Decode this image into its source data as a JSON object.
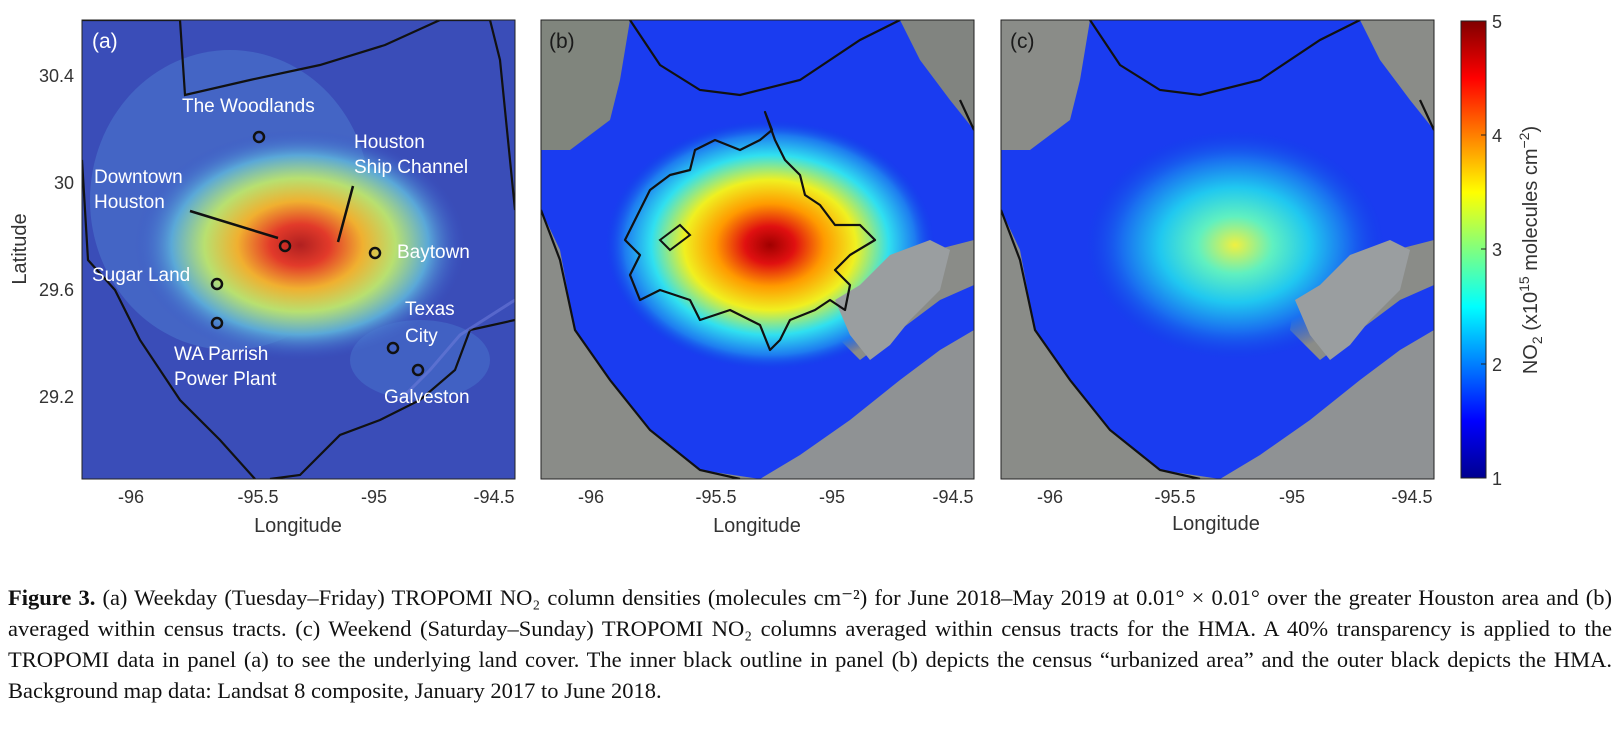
{
  "figure": {
    "panels": [
      {
        "label": "(a)",
        "xlabel": "Longitude",
        "ylabel": "Latitude"
      },
      {
        "label": "(b)",
        "xlabel": "Longitude"
      },
      {
        "label": "(c)",
        "xlabel": "Longitude"
      }
    ],
    "x_ticks": [
      "-96",
      "-95.5",
      "-95",
      "-94.5"
    ],
    "y_ticks": [
      "30.4",
      "30",
      "29.6",
      "29.2"
    ],
    "locations": [
      {
        "name": "The Woodlands",
        "lines": [
          "The Woodlands"
        ]
      },
      {
        "name": "Downtown Houston",
        "lines": [
          "Downtown",
          "Houston"
        ]
      },
      {
        "name": "Houston Ship Channel",
        "lines": [
          "Houston",
          "Ship Channel"
        ]
      },
      {
        "name": "Baytown",
        "lines": [
          "Baytown"
        ]
      },
      {
        "name": "Sugar Land",
        "lines": [
          "Sugar Land"
        ]
      },
      {
        "name": "Texas City",
        "lines": [
          "Texas",
          "City"
        ]
      },
      {
        "name": "WA Parrish Power Plant",
        "lines": [
          "WA Parrish",
          "Power Plant"
        ]
      },
      {
        "name": "Galveston",
        "lines": [
          "Galveston"
        ]
      }
    ],
    "colorbar": {
      "label_prefix": "NO",
      "label_sub": "2",
      "label_mid": " (x10",
      "label_sup1": "15",
      "label_mid2": " molecules cm",
      "label_sup2": "−2",
      "label_end": ")",
      "ticks": [
        "5",
        "4",
        "3",
        "2",
        "1"
      ],
      "range": [
        1,
        5
      ]
    }
  },
  "chart_data": {
    "type": "heatmap",
    "xlabel": "Longitude",
    "ylabel": "Latitude",
    "xlim": [
      -96.2,
      -94.4
    ],
    "ylim": [
      28.9,
      30.6
    ],
    "colorbar_range": [
      1,
      5
    ],
    "colorbar_label": "NO2 (x10^15 molecules cm^-2)",
    "panels": [
      "(a)",
      "(b)",
      "(c)"
    ]
  },
  "caption": {
    "fig_label": "Figure 3.",
    "text": " (a) Weekday (Tuesday–Friday) TROPOMI NO₂ column densities (molecules cm⁻²) for June 2018–May 2019 at 0.01° × 0.01° over the greater Houston area and (b) averaged within census tracts. (c) Weekend (Saturday–Sunday) TROPOMI NO₂ columns averaged within census tracts for the HMA. A 40% transparency is applied to the TROPOMI data in panel (a) to see the underlying land cover. The inner black outline in panel (b) depicts the census “urbanized area” and the outer black depicts the HMA. Background map data: Landsat 8 composite, January 2017 to June 2018."
  }
}
